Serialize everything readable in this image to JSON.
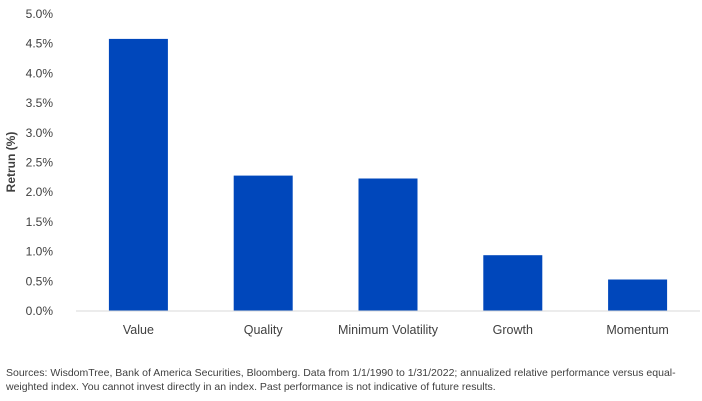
{
  "chart_data": {
    "type": "bar",
    "title": "",
    "xlabel": "",
    "ylabel": "Retrun (%)",
    "categories": [
      "Value",
      "Quality",
      "Minimum Volatility",
      "Growth",
      "Momentum"
    ],
    "values": [
      4.58,
      2.28,
      2.23,
      0.94,
      0.53
    ],
    "ylim": [
      0,
      5
    ],
    "yticks": [
      "0.0%",
      "0.5%",
      "1.0%",
      "1.5%",
      "2.0%",
      "2.5%",
      "3.0%",
      "3.5%",
      "4.0%",
      "4.5%",
      "5.0%"
    ],
    "bar_color": "#0047BB",
    "grid": false,
    "legend": "none"
  },
  "footnote": "Sources: WisdomTree, Bank of America Securities, Bloomberg. Data from 1/1/1990 to 1/31/2022; annualized relative performance versus equal-weighted index. You cannot invest directly in an index. Past performance is not indicative of future results."
}
